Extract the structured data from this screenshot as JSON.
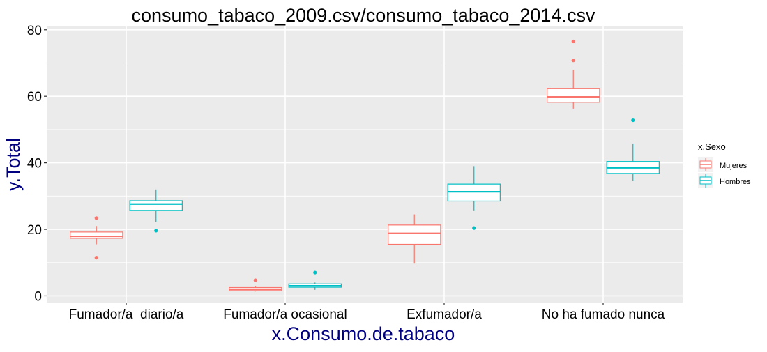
{
  "chart_data": {
    "type": "boxplot",
    "title": "consumo_tabaco_2009.csv/consumo_tabaco_2014.csv",
    "xlabel": "x.Consumo.de.tabaco",
    "ylabel": "y.Total",
    "ylim": [
      -2,
      81
    ],
    "yticks": [
      0,
      20,
      40,
      60,
      80
    ],
    "categories": [
      "Fumador/a  diario/a",
      "Fumador/a ocasional",
      "Exfumador/a",
      "No ha fumado nunca"
    ],
    "legend": {
      "title": "x.Sexo",
      "position": "right"
    },
    "grid": true,
    "colors": {
      "panel": "#ebebeb",
      "grid": "#ffffff",
      "axis_text": "#000000",
      "axis_title": "#000080"
    },
    "series": [
      {
        "name": "Mujeres",
        "color": "#F8766D",
        "boxes": [
          {
            "min": 15.5,
            "q1": 17.3,
            "median": 17.9,
            "q3": 19.2,
            "max": 21.0,
            "outliers": [
              23.4,
              11.5
            ]
          },
          {
            "min": 1.3,
            "q1": 1.6,
            "median": 2.0,
            "q3": 2.5,
            "max": 3.0,
            "outliers": [
              4.7
            ]
          },
          {
            "min": 9.7,
            "q1": 15.5,
            "median": 18.8,
            "q3": 21.3,
            "max": 24.5,
            "outliers": []
          },
          {
            "min": 56.3,
            "q1": 58.2,
            "median": 59.8,
            "q3": 62.4,
            "max": 68.0,
            "outliers": [
              76.5,
              70.8
            ]
          }
        ]
      },
      {
        "name": "Hombres",
        "color": "#00BFC4",
        "boxes": [
          {
            "min": 22.3,
            "q1": 25.7,
            "median": 27.6,
            "q3": 28.6,
            "max": 32.0,
            "outliers": [
              19.6
            ]
          },
          {
            "min": 1.8,
            "q1": 2.6,
            "median": 3.0,
            "q3": 3.6,
            "max": 4.0,
            "outliers": [
              7.0
            ]
          },
          {
            "min": 25.7,
            "q1": 28.5,
            "median": 31.3,
            "q3": 33.6,
            "max": 39.0,
            "outliers": [
              20.4
            ]
          },
          {
            "min": 34.6,
            "q1": 36.8,
            "median": 38.5,
            "q3": 40.4,
            "max": 45.8,
            "outliers": [
              52.8
            ]
          }
        ]
      }
    ]
  }
}
